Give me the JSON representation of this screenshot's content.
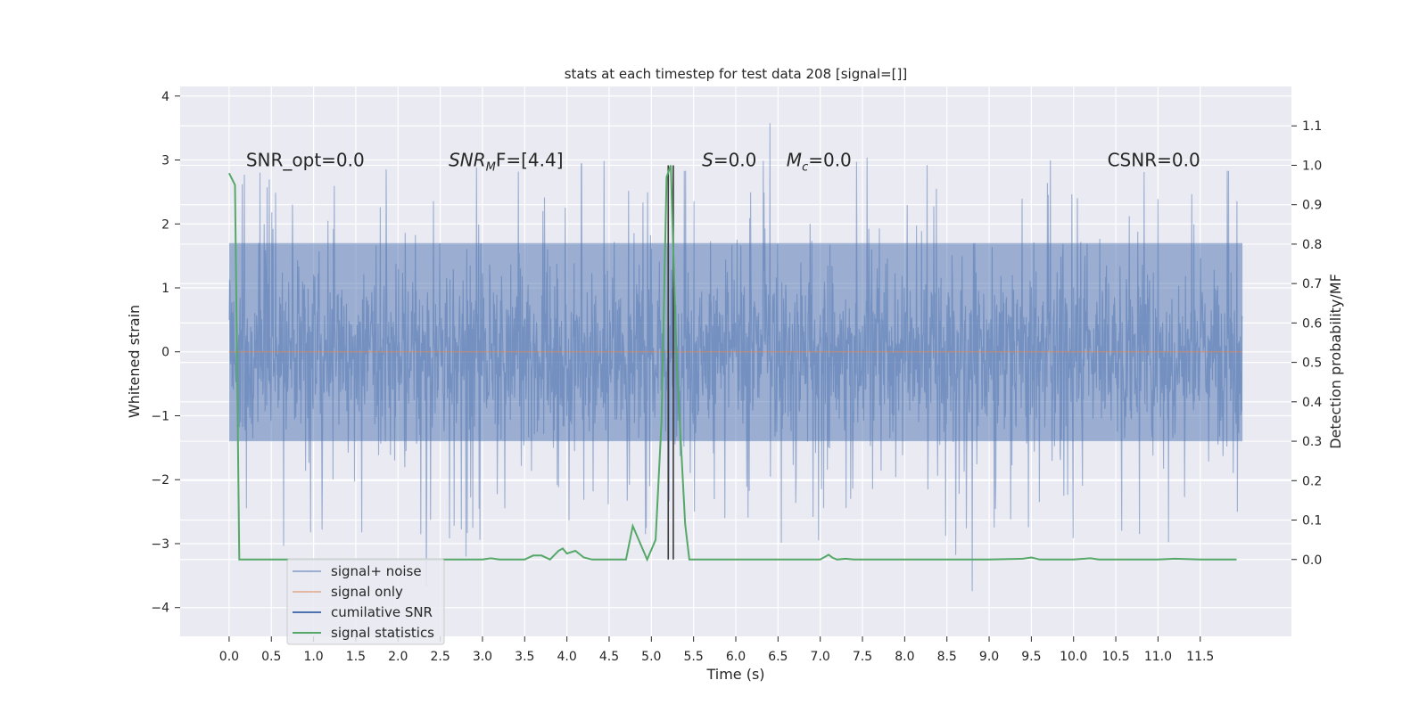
{
  "chart_data": {
    "type": "line",
    "title": "stats at each timestep for test data 208 [signal=[]]",
    "xlabel": "Time (s)",
    "ylabel": "Whitened strain",
    "y2label": "Detection probability/MF",
    "xlim": [
      -0.58,
      12.58
    ],
    "ylim": [
      -4.45,
      4.15
    ],
    "y2lim": [
      -0.195,
      1.2
    ],
    "x_ticks": [
      "0.0",
      "0.5",
      "1.0",
      "1.5",
      "2.0",
      "2.5",
      "3.0",
      "3.5",
      "4.0",
      "4.5",
      "5.0",
      "5.5",
      "6.0",
      "6.5",
      "7.0",
      "7.5",
      "8.0",
      "8.5",
      "9.0",
      "9.5",
      "10.0",
      "10.5",
      "11.0",
      "11.5"
    ],
    "y_ticks": [
      "-4",
      "-3",
      "-2",
      "-1",
      "0",
      "1",
      "2",
      "3",
      "4"
    ],
    "y2_ticks": [
      "0.0",
      "0.1",
      "0.2",
      "0.3",
      "0.4",
      "0.5",
      "0.6",
      "0.7",
      "0.8",
      "0.9",
      "1.0",
      "1.1"
    ],
    "grid": true,
    "legend_position": "lower-left",
    "annotations": [
      {
        "x": 0.2,
        "y": 3.0,
        "text": "SNR_opt=0.0"
      },
      {
        "x": 2.6,
        "y": 3.0,
        "text_main": "SNR",
        "text_sub": "M",
        "text_rest": "F=[4.4]",
        "style": "italic"
      },
      {
        "x": 5.6,
        "y": 3.0,
        "text_main": "S",
        "text_rest": "=0.0",
        "style": "italic"
      },
      {
        "x": 6.6,
        "y": 3.0,
        "text_main": "M",
        "text_sub": "c",
        "text_rest": "=0.0",
        "style": "italic"
      },
      {
        "x": 10.4,
        "y": 3.0,
        "text": "CSNR=0.0"
      }
    ],
    "series": [
      {
        "name": "signal+ noise",
        "color": "#4c72b0",
        "alpha": 0.5,
        "axis": "left",
        "x_range": [
          0.0,
          12.0
        ],
        "core_band": [
          -1.4,
          1.7
        ],
        "spike_max": 3.8,
        "spike_min": -4.1
      },
      {
        "name": "signal only",
        "color": "#dd8452",
        "alpha": 0.5,
        "axis": "left",
        "x": [
          0.0,
          12.0
        ],
        "y": [
          0.0,
          0.0
        ]
      },
      {
        "name": "cumilative SNR",
        "color": "#4c72b0",
        "axis": "right",
        "x": [
          0.0,
          12.0
        ],
        "y": [
          0.0,
          0.0
        ]
      },
      {
        "name": "signal statistics",
        "color": "#55a868",
        "axis": "right",
        "x": [
          0.0,
          0.07,
          0.12,
          0.2,
          0.3,
          0.5,
          1.0,
          2.0,
          3.0,
          3.1,
          3.2,
          3.5,
          3.6,
          3.7,
          3.8,
          3.9,
          3.95,
          4.0,
          4.1,
          4.2,
          4.3,
          4.5,
          4.6,
          4.7,
          4.78,
          4.85,
          4.95,
          5.05,
          5.12,
          5.18,
          5.23,
          5.3,
          5.4,
          5.45,
          6.0,
          7.0,
          7.1,
          7.15,
          7.2,
          7.3,
          7.4,
          8.0,
          9.0,
          9.4,
          9.5,
          9.6,
          10.0,
          10.2,
          10.3,
          11.0,
          11.2,
          11.5,
          11.93
        ],
        "y": [
          0.98,
          0.95,
          0.0,
          0.0,
          0.0,
          0.0,
          0.0,
          0.0,
          0.0,
          0.003,
          0.0,
          0.0,
          0.01,
          0.01,
          0.0,
          0.022,
          0.028,
          0.015,
          0.022,
          0.005,
          0.0,
          0.0,
          0.0,
          0.0,
          0.085,
          0.05,
          0.0,
          0.05,
          0.35,
          0.97,
          1.0,
          0.5,
          0.09,
          0.0,
          0.0,
          0.0,
          0.012,
          0.004,
          0.0,
          0.002,
          0.0,
          0.0,
          0.0,
          0.002,
          0.005,
          0.0,
          0.0,
          0.003,
          0.0,
          0.0,
          0.002,
          0.0,
          0.0
        ]
      },
      {
        "name": "",
        "color": "#3a3a3a",
        "axis": "right",
        "type": "vlines",
        "x": [
          5.2,
          5.26
        ],
        "y_range": [
          0.0,
          1.0
        ]
      }
    ]
  }
}
